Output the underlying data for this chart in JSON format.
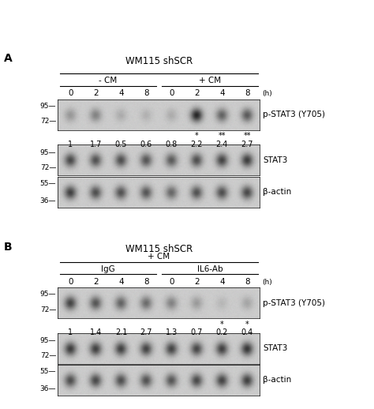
{
  "panel_A": {
    "title": "WM115 shSCR",
    "group1_label": "- CM",
    "group2_label": "+ CM",
    "time_labels": [
      "0",
      "2",
      "4",
      "8",
      "0",
      "2",
      "4",
      "8"
    ],
    "time_unit": "(h)",
    "pstat3_values": [
      "1",
      "1.7",
      "0.5",
      "0.6",
      "0.8",
      "2.2",
      "2.4",
      "2.7"
    ],
    "asterisks": [
      "",
      "",
      "",
      "",
      "",
      "*",
      "**",
      "**"
    ],
    "pstat3_intensities": [
      0.3,
      0.42,
      0.18,
      0.15,
      0.18,
      0.95,
      0.6,
      0.65
    ],
    "stat3_intensities": [
      0.75,
      0.7,
      0.72,
      0.68,
      0.65,
      0.72,
      0.78,
      0.82
    ],
    "actin_intensities": [
      0.8,
      0.72,
      0.7,
      0.68,
      0.58,
      0.7,
      0.72,
      0.75
    ],
    "mw_pstat3": [
      "95",
      "72"
    ],
    "mw_stat3": [
      "95",
      "72"
    ],
    "mw_actin": [
      "55",
      "36"
    ]
  },
  "panel_B": {
    "title": "WM115 shSCR",
    "group1_label": "+ CM",
    "sub1_label": "IgG",
    "sub2_label": "IL6-Ab",
    "time_labels": [
      "0",
      "2",
      "4",
      "8",
      "0",
      "2",
      "4",
      "8"
    ],
    "time_unit": "(h)",
    "pstat3_values": [
      "1",
      "1.4",
      "2.1",
      "2.7",
      "1.3",
      "0.7",
      "0.2",
      "0.4"
    ],
    "asterisks": [
      "",
      "",
      "",
      "",
      "",
      "",
      "*",
      "*"
    ],
    "pstat3_intensities": [
      0.78,
      0.68,
      0.6,
      0.55,
      0.42,
      0.28,
      0.12,
      0.22
    ],
    "stat3_intensities": [
      0.82,
      0.8,
      0.8,
      0.78,
      0.78,
      0.76,
      0.8,
      0.85
    ],
    "actin_intensities": [
      0.72,
      0.75,
      0.72,
      0.7,
      0.68,
      0.75,
      0.78,
      0.8
    ],
    "mw_pstat3": [
      "95",
      "72"
    ],
    "mw_stat3": [
      "95",
      "72"
    ],
    "mw_actin": [
      "55",
      "36"
    ]
  },
  "gel_bg": [
    0.82,
    0.85,
    0.82
  ],
  "band_color": [
    0.08,
    0.08,
    0.08
  ],
  "font_size_title": 8.5,
  "font_size_label": 7.5,
  "font_size_tick": 7,
  "font_size_panel": 10,
  "font_size_mw": 6.5
}
